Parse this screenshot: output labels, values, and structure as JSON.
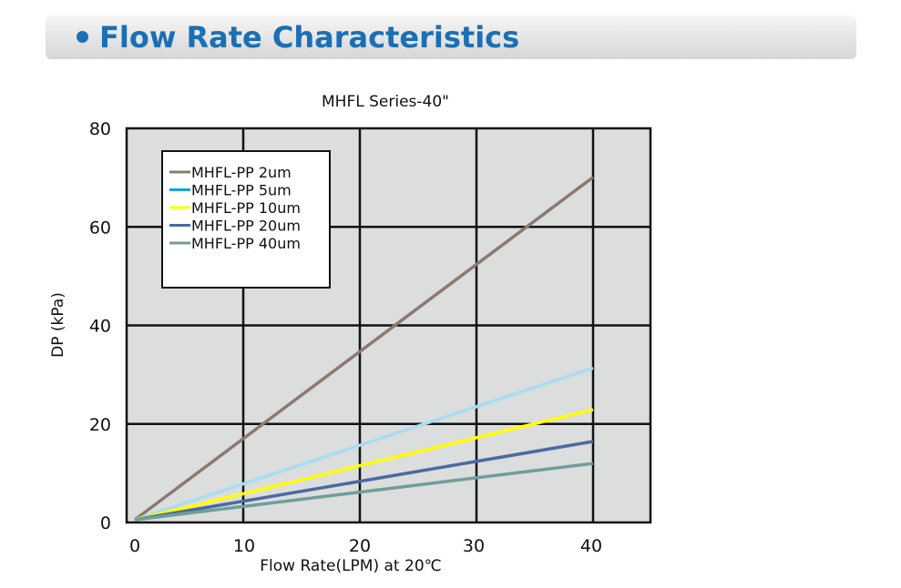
{
  "header": {
    "title": "Flow Rate Characteristics",
    "accent_color": "#1a6fb5"
  },
  "chart_data": {
    "type": "line",
    "title": "MHFL Series-40\"",
    "xlabel": "Flow Rate(LPM) at 20℃",
    "ylabel": "DP (kPa)",
    "xlim": [
      0,
      40
    ],
    "ylim": [
      0,
      80
    ],
    "xticks": [
      0,
      10,
      20,
      30,
      40
    ],
    "yticks": [
      0,
      20,
      40,
      60,
      80
    ],
    "grid": true,
    "plot_background": "#dcdddd",
    "legend_position": "top-left",
    "series": [
      {
        "name": "MHFL-PP 2um",
        "color": "#8a7a72",
        "legend_color": "#8a7a72",
        "x": [
          0,
          40
        ],
        "y": [
          0,
          70
        ]
      },
      {
        "name": "MHFL-PP 5um",
        "color": "#a8dcf2",
        "legend_color": "#1aa3e0",
        "x": [
          0,
          40
        ],
        "y": [
          0,
          31
        ]
      },
      {
        "name": "MHFL-PP 10um",
        "color": "#ffff00",
        "legend_color": "#ffff00",
        "x": [
          0,
          40
        ],
        "y": [
          0,
          22.5
        ]
      },
      {
        "name": "MHFL-PP 20um",
        "color": "#4a6aa0",
        "legend_color": "#4a6aa0",
        "x": [
          0,
          40
        ],
        "y": [
          0,
          16
        ]
      },
      {
        "name": "MHFL-PP 40um",
        "color": "#6f9e98",
        "legend_color": "#6f9e98",
        "x": [
          0,
          40
        ],
        "y": [
          0,
          11.5
        ]
      }
    ]
  }
}
